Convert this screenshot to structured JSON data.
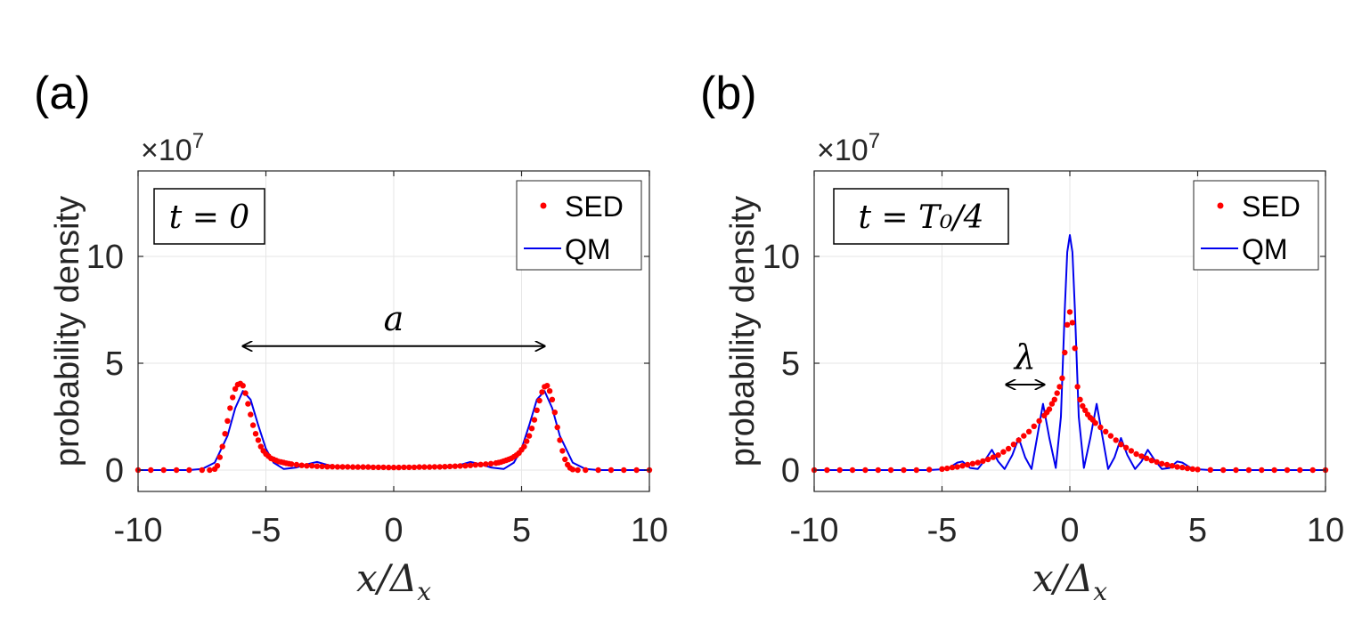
{
  "figure": {
    "colors": {
      "sed": "#ff0000",
      "qm": "#0000ee",
      "axis": "#262626",
      "grid": "#e6e6e6"
    }
  },
  "chart_data": [
    {
      "type": "line",
      "panel_label": "(a)",
      "annotation_box": "t = 0",
      "arrow_label": "a",
      "arrow_span": [
        -5.9,
        5.9
      ],
      "arrow_y": 5.8,
      "xlabel": "x/Δx",
      "xlabel_main": "x/Δ",
      "xlabel_sub": "x",
      "ylabel": "probability density",
      "y_exponent_base": "×10",
      "y_exponent_power": "7",
      "xlim": [
        -10,
        10
      ],
      "ylim": [
        -1,
        14
      ],
      "xticks": [
        -10,
        -5,
        0,
        5,
        10
      ],
      "xtick_labels": [
        "-10",
        "-5",
        "0",
        "5",
        "10"
      ],
      "yticks": [
        0,
        5,
        10
      ],
      "ytick_labels": [
        "0",
        "5",
        "10"
      ],
      "legend": {
        "position": "top-right",
        "entries": [
          "SED",
          "QM"
        ]
      },
      "series": [
        {
          "name": "QM",
          "style": "line",
          "x": [
            -10,
            -8,
            -7.5,
            -7,
            -6.5,
            -6.2,
            -5.9,
            -5.6,
            -5.3,
            -5,
            -4.7,
            -4.3,
            -3.8,
            -3.3,
            -3,
            -2.7,
            -2.2,
            -1.5,
            -1,
            -0.5,
            0,
            0.5,
            1,
            1.5,
            2.2,
            2.7,
            3,
            3.3,
            3.8,
            4.3,
            4.7,
            5,
            5.3,
            5.6,
            5.9,
            6.2,
            6.5,
            7,
            7.5,
            8,
            10
          ],
          "y": [
            0,
            0,
            0.05,
            0.35,
            1.6,
            2.9,
            3.7,
            3.3,
            2.1,
            1.0,
            0.35,
            0.05,
            0.12,
            0.3,
            0.38,
            0.28,
            0.12,
            0.15,
            0.18,
            0.12,
            0.15,
            0.12,
            0.18,
            0.15,
            0.12,
            0.28,
            0.38,
            0.3,
            0.12,
            0.05,
            0.35,
            1.0,
            2.1,
            3.3,
            3.7,
            2.9,
            1.6,
            0.35,
            0.05,
            0,
            0
          ]
        },
        {
          "name": "SED",
          "style": "dots",
          "x": [
            -10,
            -9.5,
            -9,
            -8.5,
            -8,
            -7.5,
            -7.2,
            -7,
            -6.9,
            -6.8,
            -6.7,
            -6.6,
            -6.5,
            -6.4,
            -6.3,
            -6.2,
            -6.1,
            -6.0,
            -5.9,
            -5.8,
            -5.7,
            -5.6,
            -5.5,
            -5.4,
            -5.3,
            -5.2,
            -5.1,
            -5.0,
            -4.9,
            -4.8,
            -4.7,
            -4.6,
            -4.5,
            -4.4,
            -4.3,
            -4.2,
            -4.1,
            -4.0,
            -3.8,
            -3.6,
            -3.4,
            -3.2,
            -3.0,
            -2.8,
            -2.6,
            -2.4,
            -2.2,
            -2.0,
            -1.8,
            -1.6,
            -1.4,
            -1.2,
            -1.0,
            -0.8,
            -0.6,
            -0.4,
            -0.2,
            0,
            0.2,
            0.4,
            0.6,
            0.8,
            1.0,
            1.2,
            1.4,
            1.6,
            1.8,
            2.0,
            2.2,
            2.4,
            2.6,
            2.8,
            3.0,
            3.2,
            3.4,
            3.6,
            3.8,
            4.0,
            4.1,
            4.2,
            4.3,
            4.4,
            4.5,
            4.6,
            4.7,
            4.8,
            4.9,
            5.0,
            5.1,
            5.2,
            5.3,
            5.4,
            5.5,
            5.6,
            5.7,
            5.8,
            5.9,
            6.0,
            6.1,
            6.2,
            6.3,
            6.4,
            6.5,
            6.6,
            6.7,
            6.8,
            6.9,
            7.0,
            7.2,
            7.5,
            8,
            8.5,
            9,
            9.5,
            10
          ],
          "y": [
            0,
            0,
            0,
            0,
            0,
            0,
            0,
            0.05,
            0.2,
            0.6,
            1.1,
            1.7,
            2.3,
            2.9,
            3.4,
            3.8,
            4.0,
            4.05,
            3.95,
            3.6,
            3.1,
            2.6,
            2.1,
            1.7,
            1.4,
            1.1,
            0.9,
            0.75,
            0.65,
            0.55,
            0.5,
            0.45,
            0.4,
            0.38,
            0.35,
            0.32,
            0.3,
            0.28,
            0.25,
            0.22,
            0.2,
            0.2,
            0.18,
            0.17,
            0.16,
            0.16,
            0.15,
            0.15,
            0.15,
            0.14,
            0.14,
            0.14,
            0.14,
            0.13,
            0.13,
            0.13,
            0.12,
            0.12,
            0.12,
            0.13,
            0.13,
            0.13,
            0.14,
            0.14,
            0.14,
            0.15,
            0.15,
            0.16,
            0.17,
            0.18,
            0.19,
            0.2,
            0.22,
            0.24,
            0.26,
            0.28,
            0.3,
            0.33,
            0.35,
            0.38,
            0.42,
            0.46,
            0.5,
            0.55,
            0.62,
            0.7,
            0.8,
            0.95,
            1.1,
            1.35,
            1.6,
            1.95,
            2.35,
            2.8,
            3.25,
            3.65,
            3.9,
            3.95,
            3.7,
            3.3,
            2.7,
            2.0,
            1.4,
            0.9,
            0.5,
            0.25,
            0.1,
            0.03,
            0,
            0,
            0,
            0,
            0,
            0,
            0
          ]
        }
      ]
    },
    {
      "type": "line",
      "panel_label": "(b)",
      "annotation_box": "t = T₀/4",
      "arrow_label": "λ",
      "arrow_span": [
        -2.5,
        -1.0
      ],
      "arrow_y": 4.0,
      "xlabel": "x/Δx",
      "xlabel_main": "x/Δ",
      "xlabel_sub": "x",
      "ylabel": "probability density",
      "y_exponent_base": "×10",
      "y_exponent_power": "7",
      "xlim": [
        -10,
        10
      ],
      "ylim": [
        -1,
        14
      ],
      "xticks": [
        -10,
        -5,
        0,
        5,
        10
      ],
      "xtick_labels": [
        "-10",
        "-5",
        "0",
        "5",
        "10"
      ],
      "yticks": [
        0,
        5,
        10
      ],
      "yticks_labels_note": "",
      "ytick_labels": [
        "0",
        "5",
        "10"
      ],
      "legend": {
        "position": "top-right",
        "entries": [
          "SED",
          "QM"
        ]
      },
      "series": [
        {
          "name": "QM",
          "style": "line",
          "x": [
            -10,
            -5.5,
            -4.8,
            -4.4,
            -4.2,
            -3.9,
            -3.6,
            -3.3,
            -3.05,
            -2.8,
            -2.55,
            -2.25,
            -2.0,
            -1.75,
            -1.5,
            -1.3,
            -1.05,
            -0.8,
            -0.55,
            -0.35,
            -0.2,
            -0.1,
            0,
            0.1,
            0.2,
            0.35,
            0.55,
            0.8,
            1.05,
            1.3,
            1.5,
            1.75,
            2.0,
            2.25,
            2.55,
            2.8,
            3.05,
            3.3,
            3.6,
            3.9,
            4.2,
            4.4,
            4.8,
            5.5,
            10
          ],
          "y": [
            0,
            0,
            0.05,
            0.35,
            0.4,
            0.1,
            0.05,
            0.5,
            0.95,
            0.4,
            0.05,
            0.7,
            1.5,
            0.6,
            0.05,
            1.4,
            3.1,
            1.5,
            0.1,
            2.5,
            7.5,
            10.2,
            11.0,
            10.2,
            7.5,
            2.5,
            0.1,
            1.5,
            3.1,
            1.4,
            0.05,
            0.6,
            1.5,
            0.7,
            0.05,
            0.4,
            0.95,
            0.5,
            0.05,
            0.1,
            0.4,
            0.35,
            0.05,
            0,
            0
          ]
        },
        {
          "name": "SED",
          "style": "dots",
          "x": [
            -10,
            -9.5,
            -9,
            -8.5,
            -8,
            -7.5,
            -7,
            -6.5,
            -6,
            -5.5,
            -5.0,
            -4.8,
            -4.6,
            -4.4,
            -4.2,
            -4.0,
            -3.8,
            -3.6,
            -3.4,
            -3.2,
            -3.0,
            -2.8,
            -2.6,
            -2.4,
            -2.2,
            -2.0,
            -1.8,
            -1.6,
            -1.4,
            -1.2,
            -1.0,
            -0.9,
            -0.8,
            -0.7,
            -0.6,
            -0.5,
            -0.4,
            -0.3,
            -0.2,
            -0.1,
            0,
            0.1,
            0.2,
            0.3,
            0.4,
            0.5,
            0.6,
            0.7,
            0.8,
            0.9,
            1.0,
            1.2,
            1.4,
            1.6,
            1.8,
            2.0,
            2.2,
            2.4,
            2.6,
            2.8,
            3.0,
            3.2,
            3.4,
            3.6,
            3.8,
            4.0,
            4.2,
            4.4,
            4.6,
            4.8,
            5.0,
            5.5,
            6,
            6.5,
            7,
            7.5,
            8,
            8.5,
            9,
            9.5,
            10
          ],
          "y": [
            0,
            0,
            0,
            0,
            0,
            0,
            0,
            0,
            0,
            0.02,
            0.05,
            0.08,
            0.12,
            0.15,
            0.2,
            0.25,
            0.3,
            0.35,
            0.42,
            0.5,
            0.6,
            0.7,
            0.85,
            1.0,
            1.2,
            1.4,
            1.6,
            1.8,
            2.05,
            2.3,
            2.55,
            2.7,
            2.85,
            3.1,
            3.3,
            3.6,
            3.9,
            4.3,
            5.5,
            6.8,
            7.4,
            6.9,
            5.7,
            3.9,
            3.3,
            3.0,
            2.8,
            2.6,
            2.45,
            2.35,
            2.2,
            2.0,
            1.8,
            1.6,
            1.4,
            1.2,
            1.05,
            0.9,
            0.75,
            0.65,
            0.55,
            0.45,
            0.38,
            0.3,
            0.25,
            0.2,
            0.15,
            0.12,
            0.08,
            0.05,
            0.03,
            0.01,
            0,
            0,
            0,
            0,
            0,
            0,
            0,
            0,
            0
          ]
        }
      ]
    }
  ]
}
